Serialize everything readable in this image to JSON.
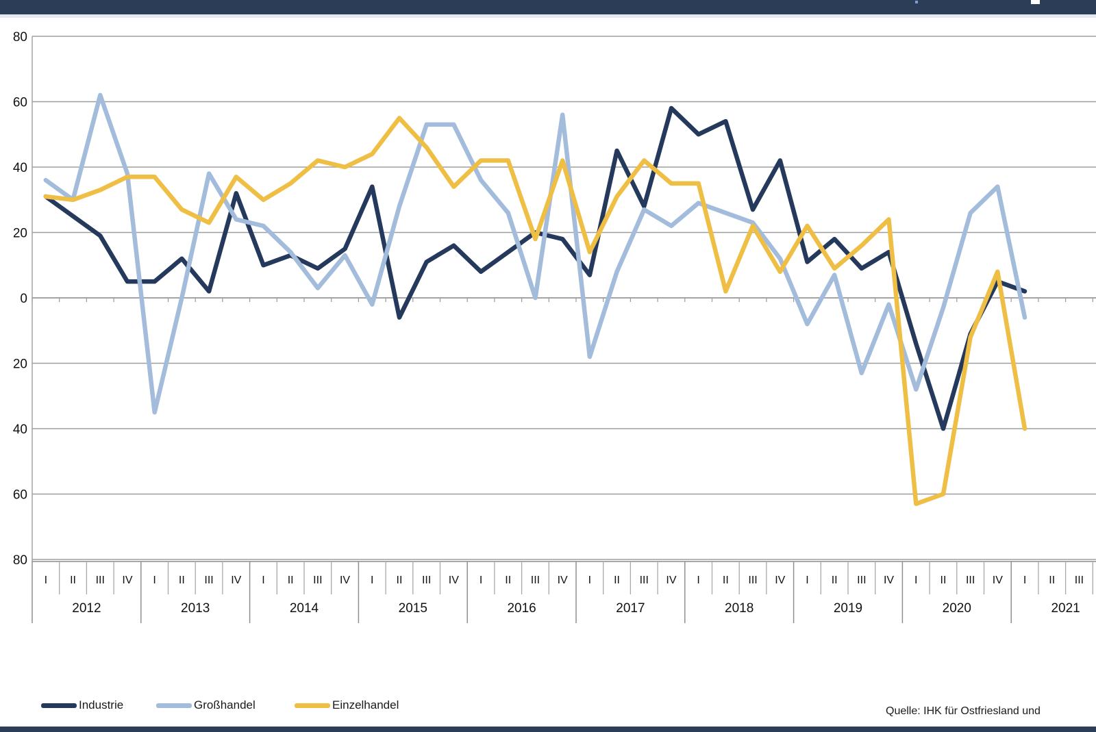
{
  "window": {
    "top_bar_color": "#2C3D58",
    "bottom_bar_color": "#2C3D58"
  },
  "chart_data": {
    "type": "line",
    "title": "",
    "xlabel": "",
    "ylabel": "",
    "grid": "horizontal",
    "legend_position": "bottom-left",
    "y_axis": {
      "min": -80,
      "max": 80,
      "step": 20,
      "tick_labels_shown": [
        "80",
        "60",
        "40",
        "20",
        "0",
        "20",
        "40",
        "60",
        "80"
      ],
      "note": "minus signs of negative tick labels are cropped off at left edge"
    },
    "x_axis": {
      "quarter_labels": [
        "I",
        "II",
        "III",
        "IV"
      ],
      "years": [
        "2012",
        "2013",
        "2014",
        "2015",
        "2016",
        "2017",
        "2018",
        "2019",
        "2020",
        "2021"
      ]
    },
    "categories": [
      "2012-I",
      "2012-II",
      "2012-III",
      "2012-IV",
      "2013-I",
      "2013-II",
      "2013-III",
      "2013-IV",
      "2014-I",
      "2014-II",
      "2014-III",
      "2014-IV",
      "2015-I",
      "2015-II",
      "2015-III",
      "2015-IV",
      "2016-I",
      "2016-II",
      "2016-III",
      "2016-IV",
      "2017-I",
      "2017-II",
      "2017-III",
      "2017-IV",
      "2018-I",
      "2018-II",
      "2018-III",
      "2018-IV",
      "2019-I",
      "2019-II",
      "2019-III",
      "2019-IV",
      "2020-I",
      "2020-II",
      "2020-III",
      "2020-IV",
      "2021-I"
    ],
    "series": [
      {
        "name": "Industrie",
        "color": "#24395B",
        "values": [
          31,
          25,
          19,
          5,
          5,
          12,
          2,
          32,
          10,
          13,
          9,
          15,
          34,
          -6,
          11,
          16,
          8,
          14,
          20,
          18,
          7,
          45,
          28,
          58,
          50,
          54,
          27,
          42,
          11,
          18,
          9,
          14,
          -14,
          -40,
          -11,
          5,
          2
        ]
      },
      {
        "name": "Großhandel",
        "color": "#A3BCDB",
        "values": [
          36,
          30,
          62,
          38,
          -35,
          0,
          38,
          24,
          22,
          14,
          3,
          13,
          -2,
          28,
          53,
          53,
          36,
          26,
          0,
          56,
          -18,
          8,
          27,
          22,
          29,
          26,
          23,
          12,
          -8,
          7,
          -23,
          -2,
          -28,
          -3,
          26,
          34,
          -6
        ]
      },
      {
        "name": "Einzelhandel",
        "color": "#EFBE45",
        "values": [
          31,
          30,
          33,
          37,
          37,
          27,
          23,
          37,
          30,
          35,
          42,
          40,
          44,
          55,
          46,
          34,
          42,
          42,
          18,
          42,
          14,
          31,
          42,
          35,
          35,
          2,
          22,
          8,
          22,
          9,
          16,
          24,
          -63,
          -60,
          -12,
          8,
          -40
        ]
      }
    ]
  },
  "source": {
    "text": "Quelle: IHK für Ostfriesland und"
  }
}
